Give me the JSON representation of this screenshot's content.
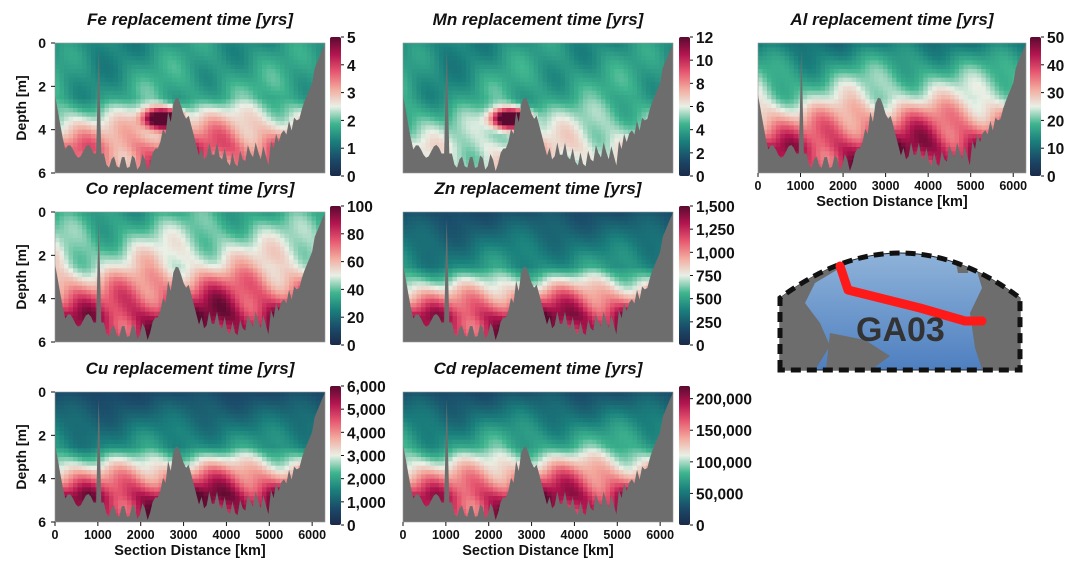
{
  "figure": {
    "colors": {
      "colormap": [
        "#1b2a4a",
        "#1b4c6a",
        "#1a7f7c",
        "#3fb58e",
        "#e9f0e6",
        "#f3aa9e",
        "#e6566f",
        "#b2154f",
        "#5a0a30"
      ],
      "seafloor": "#6d6d6d",
      "track": "#ff1a1a"
    }
  },
  "chart_data": [
    {
      "type": "heatmap",
      "title": "Fe replacement time [yrs]",
      "ylabel": "Depth [m]",
      "xlabel": "",
      "xlim": [
        0,
        6300
      ],
      "ylim": [
        6,
        0
      ],
      "xticks": [],
      "yticks": [
        "0",
        "2",
        "4",
        "6"
      ],
      "colorbar": {
        "ticks": [
          "0",
          "1",
          "2",
          "3",
          "4",
          "5"
        ],
        "min": 0,
        "max": 5
      },
      "field": {
        "surface": 1.5,
        "mid": 1.8,
        "deep": 3.8,
        "maxima": [
          {
            "x": 2500,
            "depth": 3.5,
            "value": 5
          }
        ]
      }
    },
    {
      "type": "heatmap",
      "title": "Mn replacement time [yrs]",
      "ylabel": "",
      "xlabel": "",
      "xlim": [
        0,
        6300
      ],
      "ylim": [
        6,
        0
      ],
      "xticks": [],
      "yticks": [],
      "colorbar": {
        "ticks": [
          "0",
          "2",
          "4",
          "6",
          "8",
          "10",
          "12"
        ],
        "min": 0,
        "max": 12
      },
      "field": {
        "surface": 3.5,
        "mid": 4.2,
        "deep": 6.5,
        "maxima": [
          {
            "x": 2500,
            "depth": 3.5,
            "value": 12
          }
        ]
      }
    },
    {
      "type": "heatmap",
      "title": "Al replacement time [yrs]",
      "ylabel": "",
      "xlabel": "Section Distance [km]",
      "xlim": [
        0,
        6300
      ],
      "ylim": [
        6,
        0
      ],
      "xticks": [
        "0",
        "1000",
        "2000",
        "3000",
        "4000",
        "5000",
        "6000"
      ],
      "yticks": [],
      "colorbar": {
        "ticks": [
          "0",
          "10",
          "20",
          "30",
          "40",
          "50"
        ],
        "min": 0,
        "max": 50
      },
      "field": {
        "surface": 12,
        "mid": 25,
        "deep": 46,
        "maxima": []
      }
    },
    {
      "type": "heatmap",
      "title": "Co replacement time [yrs]",
      "ylabel": "Depth [m]",
      "xlabel": "",
      "xlim": [
        0,
        6300
      ],
      "ylim": [
        6,
        0
      ],
      "xticks": [],
      "yticks": [
        "0",
        "2",
        "4",
        "6"
      ],
      "colorbar": {
        "ticks": [
          "0",
          "20",
          "40",
          "60",
          "80",
          "100"
        ],
        "min": 0,
        "max": 100
      },
      "field": {
        "surface": 35,
        "mid": 55,
        "deep": 95,
        "maxima": []
      }
    },
    {
      "type": "heatmap",
      "title": "Zn replacement time [yrs]",
      "ylabel": "",
      "xlabel": "",
      "xlim": [
        0,
        6300
      ],
      "ylim": [
        6,
        0
      ],
      "xticks": [],
      "yticks": [],
      "colorbar": {
        "ticks": [
          "0",
          "250",
          "500",
          "750",
          "1,000",
          "1,250",
          "1,500"
        ],
        "min": 0,
        "max": 1500
      },
      "field": {
        "surface": 200,
        "mid": 450,
        "deep": 1400,
        "maxima": []
      }
    },
    {
      "type": "heatmap",
      "title": "Cu replacement time [yrs]",
      "ylabel": "Depth [m]",
      "xlabel": "Section Distance [km]",
      "xlim": [
        0,
        6300
      ],
      "ylim": [
        6,
        0
      ],
      "xticks": [
        "0",
        "1000",
        "2000",
        "3000",
        "4000",
        "5000",
        "6000"
      ],
      "yticks": [
        "0",
        "2",
        "4",
        "6"
      ],
      "colorbar": {
        "ticks": [
          "0",
          "1,000",
          "2,000",
          "3,000",
          "4,000",
          "5,000",
          "6,000"
        ],
        "min": 0,
        "max": 6000
      },
      "field": {
        "surface": 700,
        "mid": 1800,
        "deep": 5800,
        "maxima": []
      }
    },
    {
      "type": "heatmap",
      "title": "Cd replacement time [yrs]",
      "ylabel": "",
      "xlabel": "Section Distance [km]",
      "xlim": [
        0,
        6300
      ],
      "ylim": [
        6,
        0
      ],
      "xticks": [
        "0",
        "1000",
        "2000",
        "3000",
        "4000",
        "5000",
        "6000"
      ],
      "yticks": [],
      "colorbar": {
        "ticks": [
          "0",
          "50,000",
          "100,000",
          "150,000",
          "200,000"
        ],
        "min": 0,
        "max": 220000
      },
      "field": {
        "surface": 30000,
        "mid": 80000,
        "deep": 200000,
        "maxima": []
      }
    }
  ],
  "map": {
    "label": "GA03"
  }
}
